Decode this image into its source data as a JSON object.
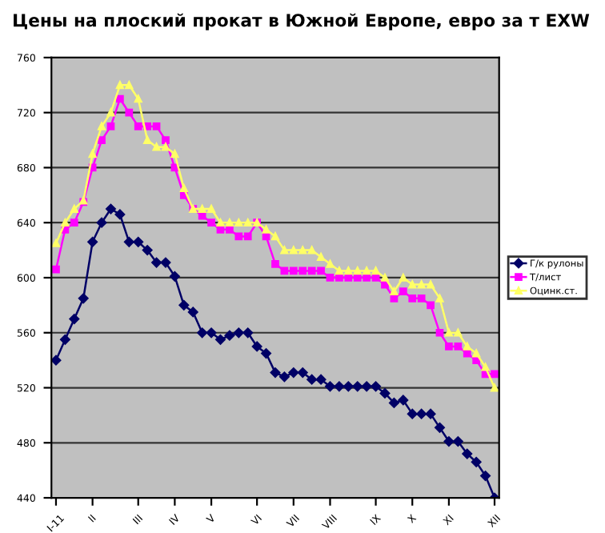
{
  "chart_data": {
    "type": "line",
    "title": "Цены на плоский прокат в Южной Европе, евро за т EXW",
    "categories": [
      "I-11",
      null,
      null,
      null,
      "II",
      null,
      null,
      null,
      null,
      "III",
      null,
      null,
      null,
      "IV",
      null,
      null,
      null,
      "V",
      null,
      null,
      null,
      null,
      "VI",
      null,
      null,
      null,
      "VII",
      null,
      null,
      null,
      "VIII",
      null,
      null,
      null,
      null,
      "IX",
      null,
      null,
      null,
      "X",
      null,
      null,
      null,
      "XI",
      null,
      null,
      null,
      null,
      "XII"
    ],
    "series": [
      {
        "name": "Г/к рулоны",
        "color": "#000066",
        "marker": "diamond",
        "values": [
          540,
          555,
          570,
          585,
          626,
          640,
          650,
          646,
          626,
          626,
          620,
          611,
          611,
          601,
          580,
          575,
          560,
          560,
          555,
          558,
          560,
          560,
          550,
          545,
          531,
          528,
          531,
          531,
          526,
          526,
          521,
          521,
          521,
          521,
          521,
          521,
          516,
          509,
          511,
          501,
          501,
          501,
          491,
          481,
          481,
          472,
          466,
          456,
          440
        ]
      },
      {
        "name": "Т/лист",
        "color": "#ff00ff",
        "marker": "square",
        "values": [
          606,
          635,
          640,
          655,
          680,
          700,
          710,
          730,
          720,
          710,
          710,
          710,
          700,
          680,
          660,
          650,
          645,
          640,
          635,
          635,
          630,
          630,
          640,
          630,
          610,
          605,
          605,
          605,
          605,
          605,
          600,
          600,
          600,
          600,
          600,
          600,
          595,
          585,
          590,
          585,
          585,
          580,
          560,
          550,
          550,
          545,
          540,
          530,
          530
        ]
      },
      {
        "name": "Оцинк.ст.",
        "color": "#ffff66",
        "marker": "triangle",
        "values": [
          625,
          640,
          650,
          656,
          690,
          710,
          720,
          740,
          740,
          730,
          700,
          695,
          695,
          690,
          665,
          650,
          650,
          650,
          640,
          640,
          640,
          640,
          640,
          635,
          630,
          620,
          620,
          620,
          620,
          615,
          610,
          605,
          605,
          605,
          605,
          605,
          600,
          590,
          600,
          595,
          595,
          595,
          585,
          560,
          560,
          550,
          545,
          535,
          520
        ]
      }
    ],
    "ylim": [
      440,
      760
    ],
    "yticks": [
      440,
      480,
      520,
      560,
      600,
      640,
      680,
      720,
      760
    ],
    "grid": "y",
    "legend": "right",
    "line_style": "solid"
  }
}
